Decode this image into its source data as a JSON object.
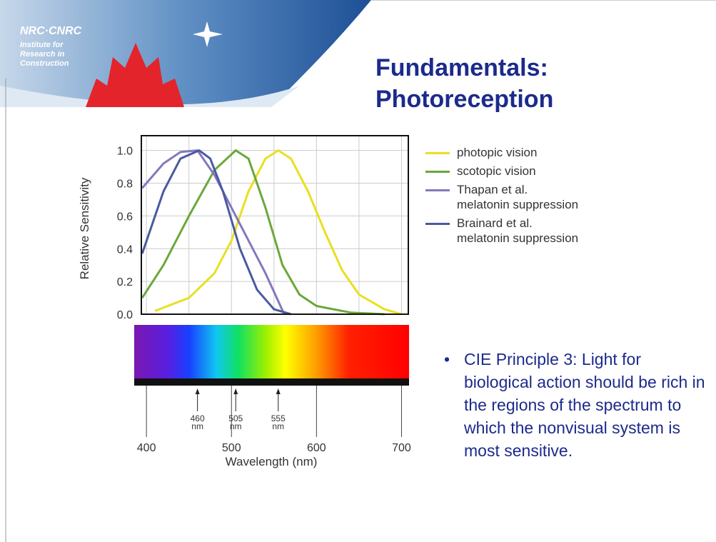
{
  "header": {
    "logo": "NRC·CNRC",
    "institute": [
      "Institute for",
      "Research in",
      "Construction"
    ],
    "title": [
      "Fundamentals:",
      "Photoreception"
    ]
  },
  "bullet": "CIE Principle 3: Light for biological action should be rich in the regions of the spectrum to which the nonvisual system is most sensitive.",
  "chart_data": {
    "type": "line",
    "xlabel": "Wavelength (nm)",
    "ylabel": "Relative Sensitivity",
    "xlim": [
      394,
      708
    ],
    "ylim": [
      0,
      1.09
    ],
    "xticks": [
      400,
      500,
      600,
      700
    ],
    "xminorticks": [
      450,
      550,
      650
    ],
    "yticks": [
      {
        "value": 0,
        "label": "0.0"
      },
      0.2,
      0.4,
      0.6,
      0.8,
      {
        "value": 1,
        "label": "1.0"
      }
    ],
    "grid": true,
    "annotations": [
      {
        "x": 460,
        "text": [
          "460",
          "nm"
        ]
      },
      {
        "x": 505,
        "text": [
          "505",
          "nm"
        ]
      },
      {
        "x": 555,
        "text": [
          "555",
          "nm"
        ]
      }
    ],
    "series": [
      {
        "name": "photopic vision",
        "color": "#e8e020",
        "x": [
          410,
          450,
          480,
          500,
          520,
          540,
          555,
          570,
          590,
          610,
          630,
          650,
          680,
          700
        ],
        "values": [
          0.02,
          0.1,
          0.25,
          0.45,
          0.75,
          0.95,
          1.0,
          0.95,
          0.75,
          0.5,
          0.27,
          0.12,
          0.03,
          0.0
        ]
      },
      {
        "name": "scotopic vision",
        "color": "#6aa83a",
        "x": [
          395,
          420,
          450,
          480,
          505,
          520,
          540,
          560,
          580,
          600,
          640,
          680
        ],
        "values": [
          0.1,
          0.3,
          0.6,
          0.88,
          1.0,
          0.95,
          0.65,
          0.3,
          0.12,
          0.05,
          0.01,
          0.0
        ]
      },
      {
        "name": "Thapan et al. melatonin suppression",
        "color": "#8478bc",
        "x": [
          395,
          420,
          440,
          460,
          480,
          500,
          520,
          540,
          555,
          562
        ],
        "values": [
          0.77,
          0.92,
          0.99,
          1.0,
          0.85,
          0.65,
          0.45,
          0.25,
          0.08,
          0.0
        ]
      },
      {
        "name": "Brainard et al. melatonin suppression",
        "color": "#4a5aa0",
        "x": [
          395,
          420,
          440,
          462,
          475,
          490,
          510,
          530,
          550,
          570
        ],
        "values": [
          0.37,
          0.75,
          0.95,
          1.0,
          0.95,
          0.75,
          0.4,
          0.15,
          0.03,
          0.0
        ]
      }
    ]
  }
}
